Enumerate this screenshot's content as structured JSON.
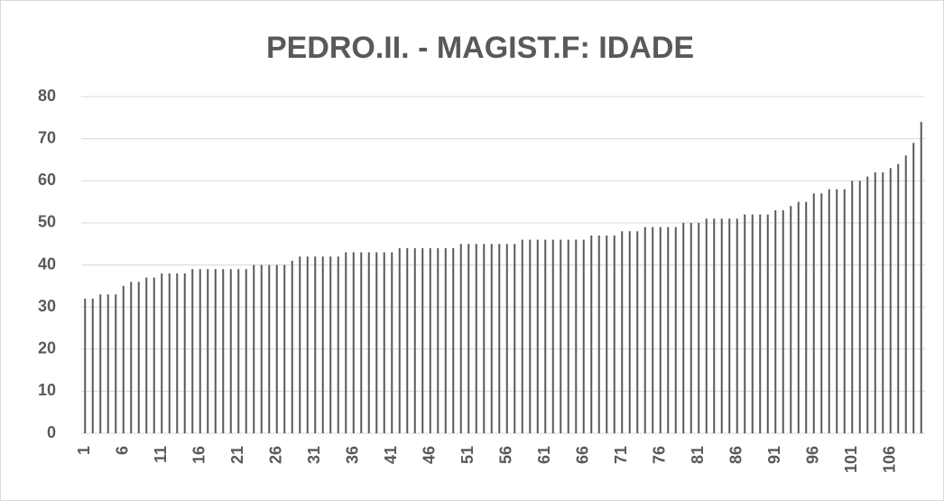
{
  "chart_data": {
    "type": "bar",
    "title": "PEDRO.II. - MAGIST.F: IDADE",
    "categories": [
      1,
      null,
      null,
      null,
      null,
      6,
      null,
      null,
      null,
      null,
      11,
      null,
      null,
      null,
      null,
      16,
      null,
      null,
      null,
      null,
      21,
      null,
      null,
      null,
      null,
      26,
      null,
      null,
      null,
      null,
      31,
      null,
      null,
      null,
      null,
      36,
      null,
      null,
      null,
      null,
      41,
      null,
      null,
      null,
      null,
      46,
      null,
      null,
      null,
      null,
      51,
      null,
      null,
      null,
      null,
      56,
      null,
      null,
      null,
      null,
      61,
      null,
      null,
      null,
      null,
      66,
      null,
      null,
      null,
      null,
      71,
      null,
      null,
      null,
      null,
      76,
      null,
      null,
      null,
      null,
      81,
      null,
      null,
      null,
      null,
      86,
      null,
      null,
      null,
      null,
      91,
      null,
      null,
      null,
      null,
      96,
      null,
      null,
      null,
      null,
      101,
      null,
      null,
      null,
      null,
      106,
      null,
      null,
      null,
      null
    ],
    "values": [
      32,
      32,
      33,
      33,
      33,
      35,
      36,
      36,
      37,
      37,
      38,
      38,
      38,
      38,
      39,
      39,
      39,
      39,
      39,
      39,
      39,
      39,
      40,
      40,
      40,
      40,
      40,
      41,
      42,
      42,
      42,
      42,
      42,
      42,
      43,
      43,
      43,
      43,
      43,
      43,
      43,
      44,
      44,
      44,
      44,
      44,
      44,
      44,
      44,
      45,
      45,
      45,
      45,
      45,
      45,
      45,
      45,
      46,
      46,
      46,
      46,
      46,
      46,
      46,
      46,
      46,
      47,
      47,
      47,
      47,
      48,
      48,
      48,
      49,
      49,
      49,
      49,
      49,
      50,
      50,
      50,
      51,
      51,
      51,
      51,
      51,
      52,
      52,
      52,
      52,
      53,
      53,
      54,
      55,
      55,
      57,
      57,
      58,
      58,
      58,
      60,
      60,
      61,
      62,
      62,
      63,
      64,
      66,
      69,
      74
    ],
    "color": "#595959",
    "ylim": [
      0,
      80
    ],
    "yticks": [
      0,
      10,
      20,
      30,
      40,
      50,
      60,
      70,
      80
    ],
    "grid": true
  }
}
